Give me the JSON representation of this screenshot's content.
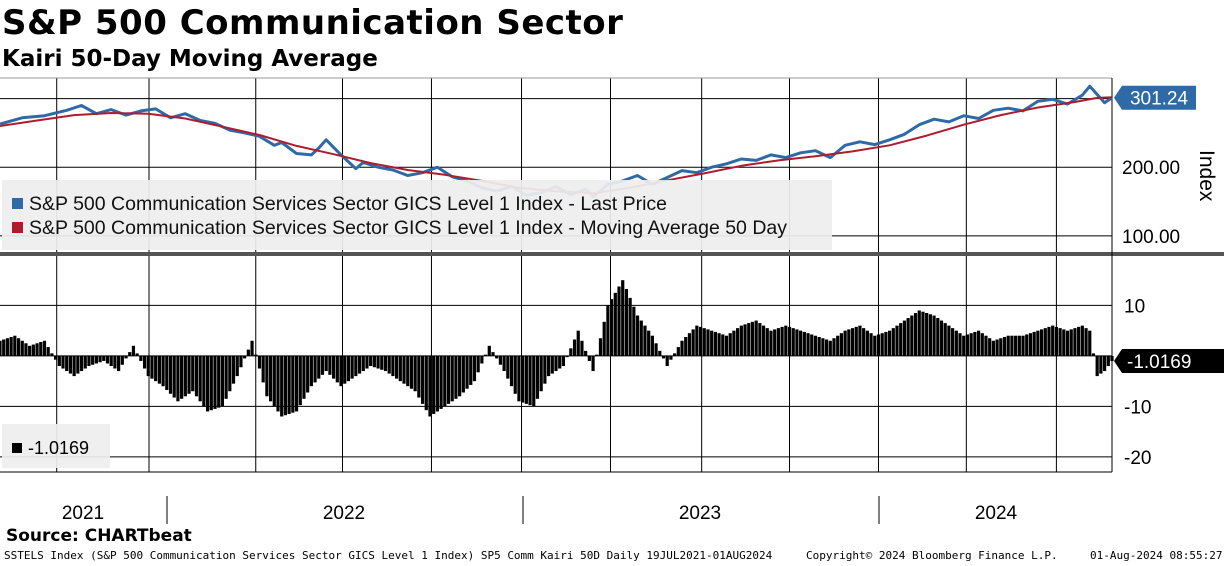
{
  "title": "S&P 500 Communication Sector",
  "subtitle": "Kairi 50-Day Moving Average",
  "source": "Source: CHARTbeat",
  "footer": {
    "left": "SSTELS Index (S&P 500 Communication Services Sector GICS Level 1 Index) SP5 Comm Kairi 50D  Daily 19JUL2021-01AUG2024",
    "middle": "Copyright© 2024 Bloomberg Finance L.P.",
    "right": "01-Aug-2024 08:55:27"
  },
  "colors": {
    "price": "#2e6aa6",
    "ma": "#b01c2e",
    "kairi": "#000000",
    "grid": "#000000"
  },
  "chart_data": [
    {
      "type": "line",
      "panel": "top",
      "y_axis_title": "Index",
      "ylim": [
        75,
        330
      ],
      "y_ticks": [
        100,
        200
      ],
      "y_tick_labels": [
        "100.00",
        "200.00"
      ],
      "last_value_label": "301.24",
      "x_labels": [
        "2021",
        "2022",
        "2023",
        "2024"
      ],
      "x_range": [
        "2021-07-19",
        "2024-08-01"
      ],
      "series": [
        {
          "name": "S&P 500 Communication Services Sector GICS Level 1 Index - Last Price",
          "points": [
            [
              0,
              263
            ],
            [
              3,
              272
            ],
            [
              6,
              275
            ],
            [
              9,
              283
            ],
            [
              11,
              290
            ],
            [
              13,
              278
            ],
            [
              15,
              284
            ],
            [
              17,
              276
            ],
            [
              19,
              282
            ],
            [
              21,
              285
            ],
            [
              23,
              272
            ],
            [
              25,
              278
            ],
            [
              27,
              268
            ],
            [
              29,
              264
            ],
            [
              31,
              254
            ],
            [
              33,
              250
            ],
            [
              35,
              245
            ],
            [
              37,
              232
            ],
            [
              38,
              236
            ],
            [
              40,
              220
            ],
            [
              42,
              218
            ],
            [
              43,
              228
            ],
            [
              44,
              240
            ],
            [
              46,
              218
            ],
            [
              48,
              198
            ],
            [
              49,
              207
            ],
            [
              51,
              200
            ],
            [
              53,
              196
            ],
            [
              55,
              188
            ],
            [
              57,
              192
            ],
            [
              59,
              200
            ],
            [
              61,
              186
            ],
            [
              63,
              180
            ],
            [
              65,
              170
            ],
            [
              67,
              165
            ],
            [
              69,
              172
            ],
            [
              71,
              159
            ],
            [
              73,
              163
            ],
            [
              75,
              172
            ],
            [
              77,
              160
            ],
            [
              79,
              168
            ],
            [
              80,
              157
            ],
            [
              82,
              175
            ],
            [
              84,
              180
            ],
            [
              86,
              188
            ],
            [
              88,
              175
            ],
            [
              90,
              185
            ],
            [
              92,
              195
            ],
            [
              94,
              192
            ],
            [
              96,
              200
            ],
            [
              98,
              205
            ],
            [
              100,
              212
            ],
            [
              102,
              210
            ],
            [
              104,
              218
            ],
            [
              106,
              214
            ],
            [
              108,
              221
            ],
            [
              110,
              224
            ],
            [
              112,
              214
            ],
            [
              114,
              232
            ],
            [
              116,
              237
            ],
            [
              118,
              233
            ],
            [
              120,
              240
            ],
            [
              122,
              248
            ],
            [
              124,
              262
            ],
            [
              126,
              270
            ],
            [
              128,
              266
            ],
            [
              130,
              275
            ],
            [
              132,
              271
            ],
            [
              134,
              283
            ],
            [
              136,
              286
            ],
            [
              138,
              282
            ],
            [
              140,
              296
            ],
            [
              142,
              299
            ],
            [
              144,
              292
            ],
            [
              146,
              305
            ],
            [
              147,
              318
            ],
            [
              148,
              306
            ],
            [
              149,
              294
            ],
            [
              150,
              301.24
            ]
          ]
        },
        {
          "name": "S&P 500 Communication Services Sector GICS Level 1 Index - Moving Average 50 Day",
          "points": [
            [
              0,
              260
            ],
            [
              5,
              268
            ],
            [
              10,
              276
            ],
            [
              15,
              279
            ],
            [
              20,
              278
            ],
            [
              25,
              271
            ],
            [
              30,
              259
            ],
            [
              35,
              247
            ],
            [
              40,
              231
            ],
            [
              45,
              219
            ],
            [
              50,
              206
            ],
            [
              55,
              196
            ],
            [
              60,
              189
            ],
            [
              65,
              180
            ],
            [
              70,
              170
            ],
            [
              75,
              165
            ],
            [
              80,
              162
            ],
            [
              85,
              170
            ],
            [
              90,
              181
            ],
            [
              95,
              191
            ],
            [
              100,
              202
            ],
            [
              105,
              210
            ],
            [
              110,
              216
            ],
            [
              115,
              223
            ],
            [
              120,
              232
            ],
            [
              125,
              246
            ],
            [
              130,
              262
            ],
            [
              135,
              276
            ],
            [
              140,
              287
            ],
            [
              145,
              295
            ],
            [
              148,
              301
            ],
            [
              150,
              302
            ]
          ]
        }
      ]
    },
    {
      "type": "bar",
      "panel": "bottom",
      "name": "SP5 Comm Kairi 50D",
      "legend_label": "-1.0169",
      "last_value_label": "-1.0169",
      "ylim": [
        -23,
        19
      ],
      "y_ticks": [
        10,
        0,
        -10,
        -20
      ],
      "y_tick_labels": [
        "10",
        "",
        "-10",
        "-20"
      ],
      "points": [
        [
          0,
          3
        ],
        [
          2,
          4
        ],
        [
          4,
          2
        ],
        [
          6,
          3
        ],
        [
          8,
          -2
        ],
        [
          10,
          -4
        ],
        [
          12,
          -2
        ],
        [
          14,
          -1
        ],
        [
          16,
          -3
        ],
        [
          18,
          2
        ],
        [
          20,
          -4
        ],
        [
          22,
          -6
        ],
        [
          24,
          -9
        ],
        [
          26,
          -7
        ],
        [
          28,
          -11
        ],
        [
          30,
          -10
        ],
        [
          32,
          -4
        ],
        [
          34,
          3
        ],
        [
          36,
          -8
        ],
        [
          38,
          -12
        ],
        [
          40,
          -11
        ],
        [
          42,
          -6
        ],
        [
          44,
          -3
        ],
        [
          46,
          -6
        ],
        [
          48,
          -4
        ],
        [
          50,
          -2
        ],
        [
          52,
          -3
        ],
        [
          54,
          -5
        ],
        [
          56,
          -7
        ],
        [
          58,
          -12
        ],
        [
          60,
          -10
        ],
        [
          62,
          -8
        ],
        [
          64,
          -5
        ],
        [
          66,
          2
        ],
        [
          68,
          -3
        ],
        [
          70,
          -9
        ],
        [
          72,
          -10
        ],
        [
          74,
          -4
        ],
        [
          76,
          -2
        ],
        [
          78,
          5
        ],
        [
          80,
          -3
        ],
        [
          82,
          10
        ],
        [
          84,
          15
        ],
        [
          86,
          8
        ],
        [
          88,
          4
        ],
        [
          90,
          -2
        ],
        [
          92,
          3
        ],
        [
          94,
          6
        ],
        [
          96,
          5
        ],
        [
          98,
          4
        ],
        [
          100,
          6
        ],
        [
          102,
          7
        ],
        [
          104,
          5
        ],
        [
          106,
          6
        ],
        [
          108,
          5
        ],
        [
          110,
          4
        ],
        [
          112,
          3
        ],
        [
          114,
          5
        ],
        [
          116,
          6
        ],
        [
          118,
          4
        ],
        [
          120,
          5
        ],
        [
          122,
          7
        ],
        [
          124,
          9
        ],
        [
          126,
          8
        ],
        [
          128,
          6
        ],
        [
          130,
          4
        ],
        [
          132,
          5
        ],
        [
          134,
          3
        ],
        [
          136,
          4
        ],
        [
          138,
          4
        ],
        [
          140,
          5
        ],
        [
          142,
          6
        ],
        [
          144,
          5
        ],
        [
          146,
          6
        ],
        [
          147,
          5
        ],
        [
          148,
          -4
        ],
        [
          149,
          -3
        ],
        [
          150,
          -1.0169
        ]
      ]
    }
  ]
}
